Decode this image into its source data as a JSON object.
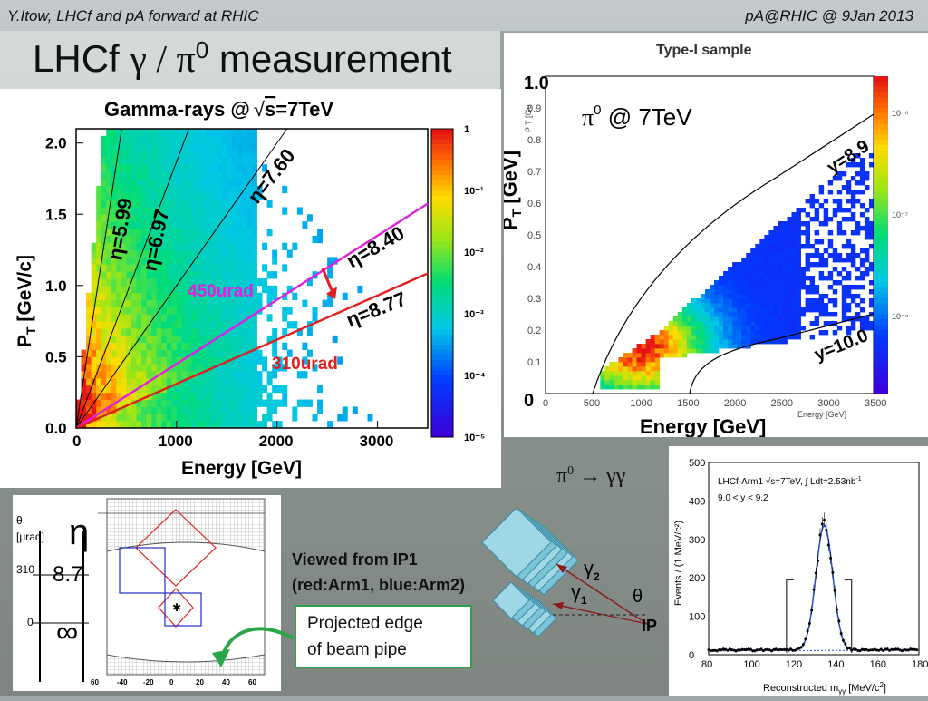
{
  "header": {
    "left": "Y.Itow,  LHCf and pA forward at RHIC",
    "right": "pA@RHIC @ 9Jan 2013"
  },
  "title": {
    "prefix": "LHCf ",
    "greek": "γ / π",
    "sup": "0",
    "suffix": " measurement"
  },
  "gamma_plot": {
    "title_a": "Gamma-rays @",
    "title_sqrt": "s",
    "title_b": "=7TeV",
    "xlabel": "Energy [GeV]",
    "ylabel": "P",
    "ylabel_sub": "T",
    "ylabel_unit": " [GeV/c]",
    "xticks": [
      "0",
      "1000",
      "2000",
      "3000"
    ],
    "yticks": [
      "0.0",
      "0.5",
      "1.0",
      "1.5",
      "2.0"
    ],
    "colorbar_ticks": [
      "1",
      "10⁻¹",
      "10⁻²",
      "10⁻³",
      "10⁻⁴",
      "10⁻⁵"
    ],
    "eta_labels": [
      "η=5.99",
      "η=6.97",
      "η=7.60",
      "η=8.40",
      "η=8.77"
    ],
    "urad_magenta": "450urad",
    "urad_red": "310urad",
    "magenta": "#e020e0",
    "red": "#e02020"
  },
  "pi0_plot": {
    "header": "Type-I sample",
    "annotation_pi": "π",
    "annotation_sup": "0",
    "annotation_rest": " @ 7TeV",
    "ytop": "1.0",
    "ybottom": "0",
    "y_label_a": "y=8.9",
    "y_label_b": "y=10.0",
    "xlabel": "Energy [GeV]",
    "ylabel": "P",
    "ylabel_sub": "T",
    "ylabel_unit": " [GeV]",
    "xticks": [
      "0",
      "500",
      "1000",
      "1500",
      "2000",
      "2500",
      "3000",
      "3500"
    ],
    "yticks": [
      "0.1",
      "0.2",
      "0.3",
      "0.4",
      "0.5",
      "0.6",
      "0.7",
      "0.8",
      "0.9"
    ],
    "small_xlabel": "Energy [GeV]",
    "small_ylabel": "P T [Ge",
    "colorbar_ticks": [
      "10⁻⁶",
      "10⁻⁷",
      "10⁻⁸"
    ]
  },
  "detector": {
    "theta": "θ",
    "theta_unit": "[μrad]",
    "eta": "η",
    "tick_310": "310",
    "tick_0": "0",
    "eta_val": "8.7",
    "infinity": "∞",
    "xticks": [
      "60",
      "-40",
      "-20",
      "0",
      "20",
      "40",
      "60"
    ]
  },
  "viewed": {
    "line1": "Viewed from IP1",
    "line2": "(red:Arm1, blue:Arm2)"
  },
  "callout": {
    "line1": "Projected edge",
    "line2": "of beam pipe"
  },
  "decay": {
    "pi": "π",
    "sup": "0",
    "arrow": " → γγ",
    "gamma2": "γ",
    "gamma2_sub": "2",
    "gamma1": "γ",
    "gamma1_sub": "1",
    "theta": "θ",
    "ip": "IP"
  },
  "mass_plot": {
    "legend_a": "LHCf-Arm1 √s=7TeV, ∫ Ldt=2.53nb",
    "legend_a_sup": "-1",
    "legend_b": "9.0 < y < 9.2",
    "xlabel": "Reconstructed m",
    "xlabel_sub": "γγ",
    "xlabel_unit": " [MeV/c",
    "xlabel_sup": "2",
    "xlabel_end": "]",
    "ylabel": "Events / (1 MeV/c²)",
    "xticks": [
      "80",
      "100",
      "120",
      "140",
      "160",
      "180"
    ],
    "yticks": [
      "0",
      "100",
      "200",
      "300",
      "400",
      "500"
    ]
  },
  "chart_data": [
    {
      "type": "heatmap",
      "title": "Gamma-rays @ √s=7TeV",
      "xlabel": "Energy [GeV]",
      "ylabel": "PT [GeV/c]",
      "xlim": [
        0,
        3500
      ],
      "ylim": [
        0,
        2.1
      ],
      "colorbar_range": [
        1e-05,
        1
      ],
      "colorbar_scale": "log",
      "lines": [
        {
          "name": "η=5.99",
          "slope_pT_per_GeV": 0.00463
        },
        {
          "name": "η=6.97",
          "slope_pT_per_GeV": 0.00187
        },
        {
          "name": "η=7.60",
          "slope_pT_per_GeV": 0.001
        },
        {
          "name": "η=8.40",
          "slope_pT_per_GeV": 0.00045,
          "color": "#e020e0",
          "label": "450urad"
        },
        {
          "name": "η=8.77",
          "slope_pT_per_GeV": 0.00031,
          "color": "#e02020",
          "label": "310urad"
        }
      ]
    },
    {
      "type": "heatmap",
      "title": "Type-I sample",
      "xlabel": "Energy [GeV]",
      "ylabel": "PT [GeV]",
      "xlim": [
        0,
        3500
      ],
      "ylim": [
        0,
        1.0
      ],
      "peak": {
        "energy": 1000,
        "pT": 0.15
      },
      "boundaries": [
        "y=8.9",
        "y=10.0"
      ]
    },
    {
      "type": "scatter",
      "xlabel": "Reconstructed mγγ [MeV/c²]",
      "ylabel": "Events / (1 MeV/c²)",
      "xlim": [
        80,
        180
      ],
      "ylim": [
        0,
        500
      ],
      "peak_mass": 135,
      "peak_height": 325,
      "peak_width_sigma": 4,
      "background_level": 12,
      "window": [
        117,
        148
      ]
    }
  ]
}
